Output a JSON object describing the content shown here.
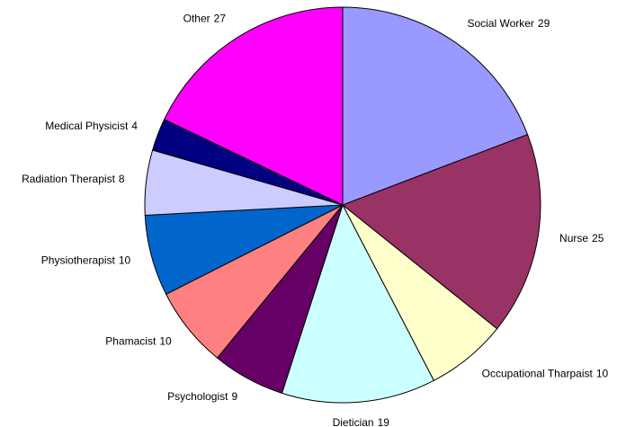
{
  "chart_data": {
    "type": "pie",
    "categories": [
      "Social Worker",
      "Nurse",
      "Occupational Tharpaist",
      "Dietician",
      "Psychologist",
      "Phamacist",
      "Physiotherapist",
      "Radiation Therapist",
      "Medical Physicist",
      "Other"
    ],
    "values": [
      29,
      25,
      10,
      19,
      9,
      10,
      10,
      8,
      4,
      27
    ],
    "colors": [
      "#9999ff",
      "#993366",
      "#ffffcc",
      "#ccffff",
      "#660066",
      "#ff8080",
      "#0066cc",
      "#ccccff",
      "#000080",
      "#ff00ff"
    ]
  }
}
